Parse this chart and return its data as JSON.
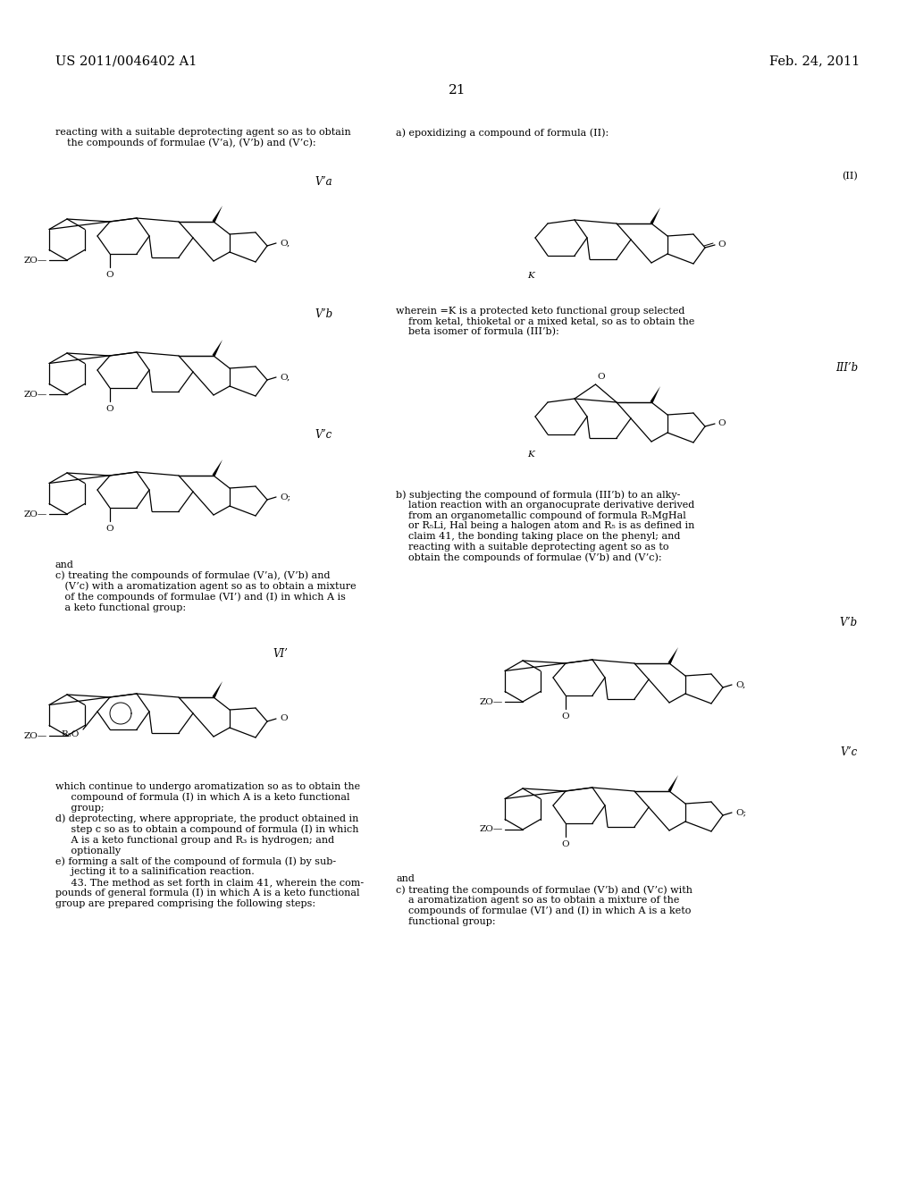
{
  "background_color": "#ffffff",
  "page_number": "21",
  "header_left": "US 2011/0046402 A1",
  "header_right": "Feb. 24, 2011",
  "figsize": [
    10.24,
    13.2
  ],
  "dpi": 100
}
